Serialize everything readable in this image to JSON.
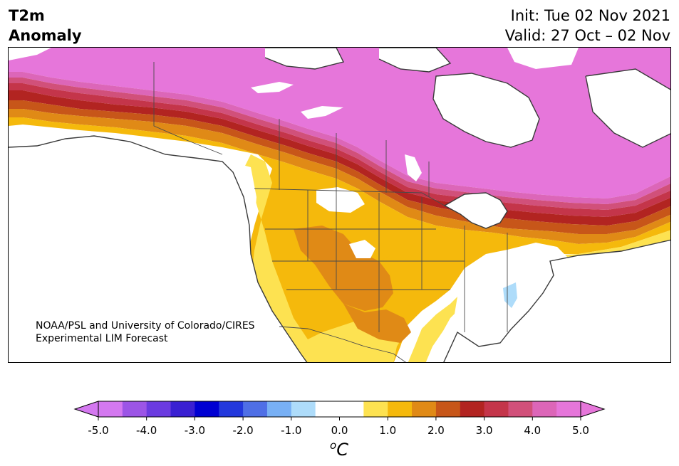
{
  "header": {
    "title_line1": "T2m",
    "title_line2": "Anomaly",
    "init": "Init: Tue 02 Nov 2021",
    "valid": "Valid: 27 Oct – 02 Nov"
  },
  "map": {
    "region": "North America",
    "credit_line1": "NOAA/PSL and University of Colorado/CIRES",
    "credit_line2": "Experimental LIM Forecast"
  },
  "colorbar": {
    "ticks": [
      "-5.0",
      "-4.0",
      "-3.0",
      "-2.0",
      "-1.0",
      "0.0",
      "1.0",
      "2.0",
      "3.0",
      "4.0",
      "5.0"
    ],
    "unit_symbol": "o",
    "unit_letter": "C",
    "colors": [
      "#d478f0",
      "#9c55e6",
      "#6b3be0",
      "#3a20d2",
      "#0000d2",
      "#2338dc",
      "#4f6fe6",
      "#78b0f5",
      "#aedcfa",
      "#ffffff",
      "#ffffff",
      "#fde251",
      "#f5b90c",
      "#e08a16",
      "#c75619",
      "#b22421",
      "#c4354a",
      "#d1507a",
      "#dc66b8",
      "#e676da"
    ],
    "extend_low": "#d478f0",
    "extend_high": "#e676da"
  }
}
